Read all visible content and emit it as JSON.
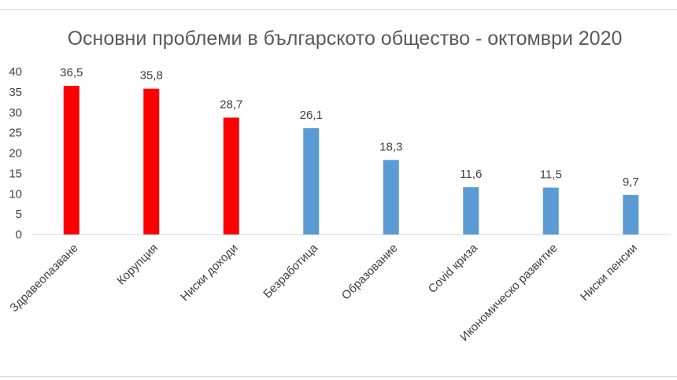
{
  "chart_data": {
    "type": "bar",
    "title": "Основни проблеми в българското общество - октомври 2020",
    "xlabel": "",
    "ylabel": "",
    "ylim": [
      0,
      40
    ],
    "yticks": [
      0,
      5,
      10,
      15,
      20,
      25,
      30,
      35,
      40
    ],
    "grid": false,
    "legend": "none",
    "categories": [
      "Здравеопазване",
      "Корупция",
      "Ниски доходи",
      "Безработица",
      "Образование",
      "Covid криза",
      "Икономическо развитие",
      "Ниски пенсии"
    ],
    "values": [
      36.5,
      35.8,
      28.7,
      26.1,
      18.3,
      11.6,
      11.5,
      9.7
    ],
    "data_labels": [
      "36,5",
      "35,8",
      "28,7",
      "26,1",
      "18,3",
      "11,6",
      "11,5",
      "9,7"
    ],
    "bar_colors": [
      "#ff0000",
      "#ff0000",
      "#ff0000",
      "#5b9bd5",
      "#5b9bd5",
      "#5b9bd5",
      "#5b9bd5",
      "#5b9bd5"
    ],
    "axis_color": "#d9d9d9"
  }
}
